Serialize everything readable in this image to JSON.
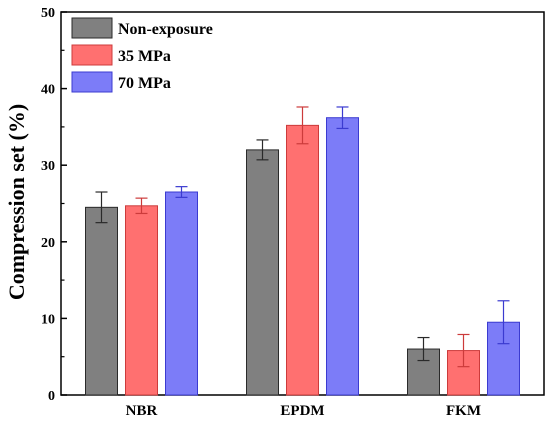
{
  "chart_data": {
    "type": "bar",
    "ylabel": "Compression set (%)",
    "xlabel": "",
    "ylim": [
      0,
      50
    ],
    "yticks": [
      "0",
      "10",
      "20",
      "30",
      "40",
      "50"
    ],
    "categories": [
      "NBR",
      "EPDM",
      "FKM"
    ],
    "legend_position": "top-left",
    "series": [
      {
        "name": "Non-exposure",
        "values": [
          24.5,
          32.0,
          6.0
        ],
        "errors": [
          2.0,
          1.3,
          1.5
        ],
        "color": "#808080",
        "edge": "#2a2a2a"
      },
      {
        "name": "35 MPa",
        "values": [
          24.7,
          35.2,
          5.8
        ],
        "errors": [
          1.0,
          2.4,
          2.1
        ],
        "color": "#ff7070",
        "edge": "#cc3b3b"
      },
      {
        "name": "70 MPa",
        "values": [
          26.5,
          36.2,
          9.5
        ],
        "errors": [
          0.7,
          1.4,
          2.8
        ],
        "color": "#7c7cf8",
        "edge": "#3b3bd0"
      }
    ]
  }
}
